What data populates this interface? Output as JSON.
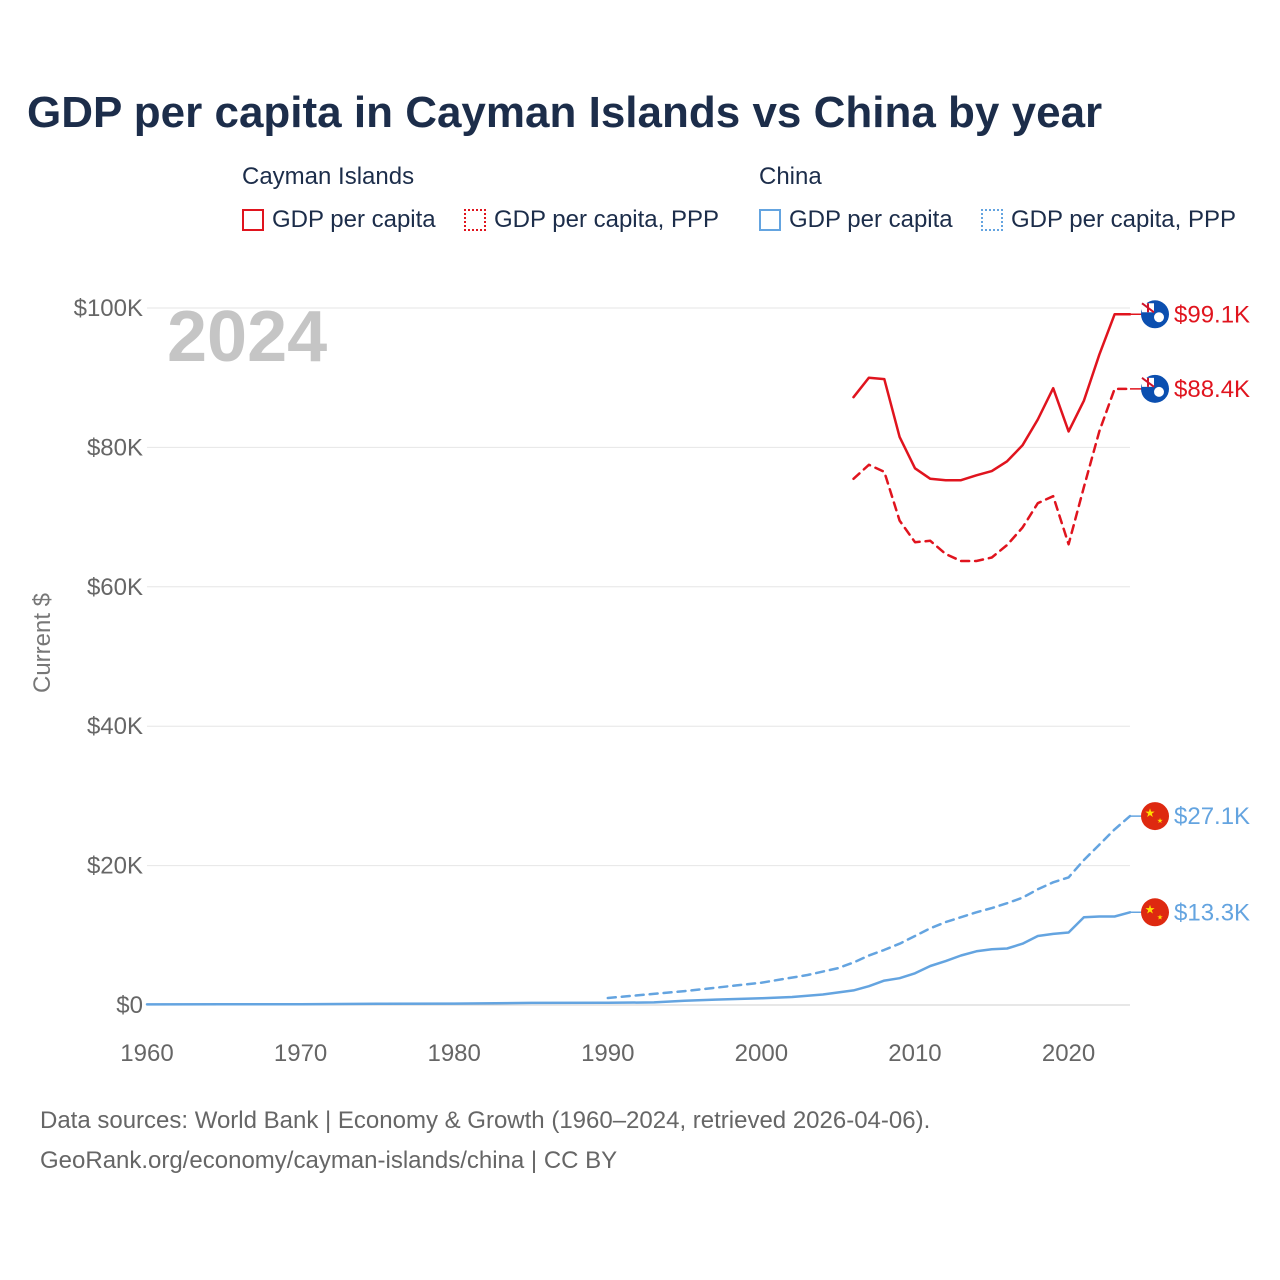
{
  "title": "GDP per capita in Cayman Islands vs China by year",
  "legend": {
    "groups": [
      {
        "name": "Cayman Islands",
        "color": "#e0141e",
        "items": [
          "GDP per capita",
          "GDP per capita, PPP"
        ]
      },
      {
        "name": "China",
        "color": "#64a4e0",
        "items": [
          "GDP per capita",
          "GDP per capita, PPP"
        ]
      }
    ]
  },
  "year_label": "2024",
  "footer": {
    "line1": "Data sources: World Bank | Economy & Growth (1960–2024, retrieved 2026-04-06).",
    "line2": "GeoRank.org/economy/cayman-islands/china | CC BY"
  },
  "chart_data": {
    "type": "line",
    "title": "GDP per capita in Cayman Islands vs China by year",
    "xlabel": "",
    "ylabel": "Current $",
    "xlim": [
      1960,
      2024
    ],
    "ylim": [
      0,
      100000
    ],
    "x_ticks": [
      1960,
      1970,
      1980,
      1990,
      2000,
      2010,
      2020
    ],
    "x_tick_labels": [
      "1960",
      "1970",
      "1980",
      "1990",
      "2000",
      "2010",
      "2020"
    ],
    "y_ticks": [
      0,
      20000,
      40000,
      60000,
      80000,
      100000
    ],
    "y_tick_labels": [
      "$0",
      "$20K",
      "$40K",
      "$60K",
      "$80K",
      "$100K"
    ],
    "grid": true,
    "series": [
      {
        "name": "Cayman Islands GDP per capita",
        "country": "Cayman Islands",
        "color": "#e0141e",
        "dash": "solid",
        "end_label": "$99.1K",
        "flag": "cayman-islands-flag",
        "x": [
          2006,
          2007,
          2008,
          2009,
          2010,
          2011,
          2012,
          2013,
          2014,
          2015,
          2016,
          2017,
          2018,
          2019,
          2020,
          2021,
          2022,
          2023,
          2024
        ],
        "values": [
          87200,
          90000,
          89800,
          81500,
          77000,
          75500,
          75300,
          75300,
          76000,
          76600,
          78000,
          80300,
          84000,
          88500,
          82300,
          86700,
          93300,
          99100,
          99100
        ]
      },
      {
        "name": "Cayman Islands GDP per capita, PPP",
        "country": "Cayman Islands",
        "color": "#e0141e",
        "dash": "dashed",
        "end_label": "$88.4K",
        "flag": "cayman-islands-flag",
        "x": [
          2006,
          2007,
          2008,
          2009,
          2010,
          2011,
          2012,
          2013,
          2014,
          2015,
          2016,
          2017,
          2018,
          2019,
          2020,
          2021,
          2022,
          2023,
          2024
        ],
        "values": [
          75500,
          77500,
          76500,
          69500,
          66400,
          66600,
          64700,
          63700,
          63700,
          64200,
          66000,
          68500,
          72000,
          73000,
          66100,
          74300,
          82300,
          88400,
          88400
        ]
      },
      {
        "name": "China GDP per capita",
        "country": "China",
        "color": "#64a4e0",
        "dash": "solid",
        "end_label": "$13.3K",
        "flag": "china-flag",
        "x": [
          1960,
          1965,
          1970,
          1975,
          1980,
          1985,
          1990,
          1993,
          1995,
          1997,
          2000,
          2002,
          2004,
          2006,
          2007,
          2008,
          2009,
          2010,
          2011,
          2012,
          2013,
          2014,
          2015,
          2016,
          2017,
          2018,
          2019,
          2020,
          2021,
          2022,
          2023,
          2024
        ],
        "values": [
          90,
          100,
          110,
          180,
          195,
          295,
          320,
          380,
          610,
          780,
          960,
          1150,
          1510,
          2100,
          2700,
          3500,
          3850,
          4550,
          5600,
          6300,
          7100,
          7700,
          8000,
          8100,
          8800,
          9900,
          10200,
          10400,
          12600,
          12700,
          12700,
          13300
        ]
      },
      {
        "name": "China GDP per capita, PPP",
        "country": "China",
        "color": "#64a4e0",
        "dash": "dashed",
        "end_label": "$27.1K",
        "flag": "china-flag",
        "x": [
          1990,
          1995,
          2000,
          2003,
          2005,
          2006,
          2007,
          2008,
          2009,
          2010,
          2011,
          2012,
          2013,
          2014,
          2015,
          2016,
          2017,
          2018,
          2019,
          2020,
          2021,
          2022,
          2023,
          2024
        ],
        "values": [
          1000,
          2000,
          3200,
          4300,
          5300,
          6100,
          7100,
          7900,
          8800,
          9900,
          11000,
          11900,
          12600,
          13300,
          13900,
          14600,
          15400,
          16600,
          17600,
          18300,
          20800,
          23000,
          25200,
          27100
        ]
      }
    ]
  }
}
